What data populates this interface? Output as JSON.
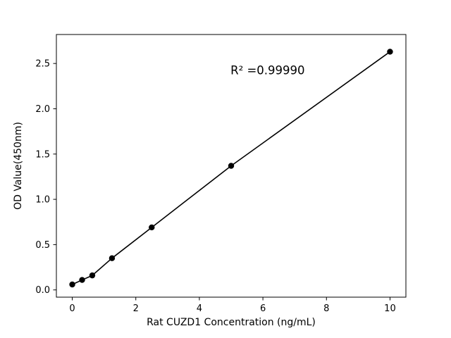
{
  "chart_data": {
    "type": "scatter",
    "title": "",
    "xlabel": "Rat CUZD1 Concentration (ng/mL)",
    "ylabel": "OD Value(450nm)",
    "annotation": "R² =0.99990",
    "annotation_xy": [
      6.15,
      2.42
    ],
    "x": [
      0,
      0.31,
      0.63,
      1.25,
      2.5,
      5,
      10
    ],
    "y": [
      0.06,
      0.11,
      0.16,
      0.35,
      0.69,
      1.37,
      2.63
    ],
    "xticks": [
      0,
      2,
      4,
      6,
      8,
      10
    ],
    "yticks": [
      0.0,
      0.5,
      1.0,
      1.5,
      2.0,
      2.5
    ],
    "xlim": [
      -0.5,
      10.5
    ],
    "ylim": [
      -0.08,
      2.82
    ],
    "line_color": "#000000",
    "marker_color": "#000000",
    "legend": "none",
    "grid": false
  }
}
